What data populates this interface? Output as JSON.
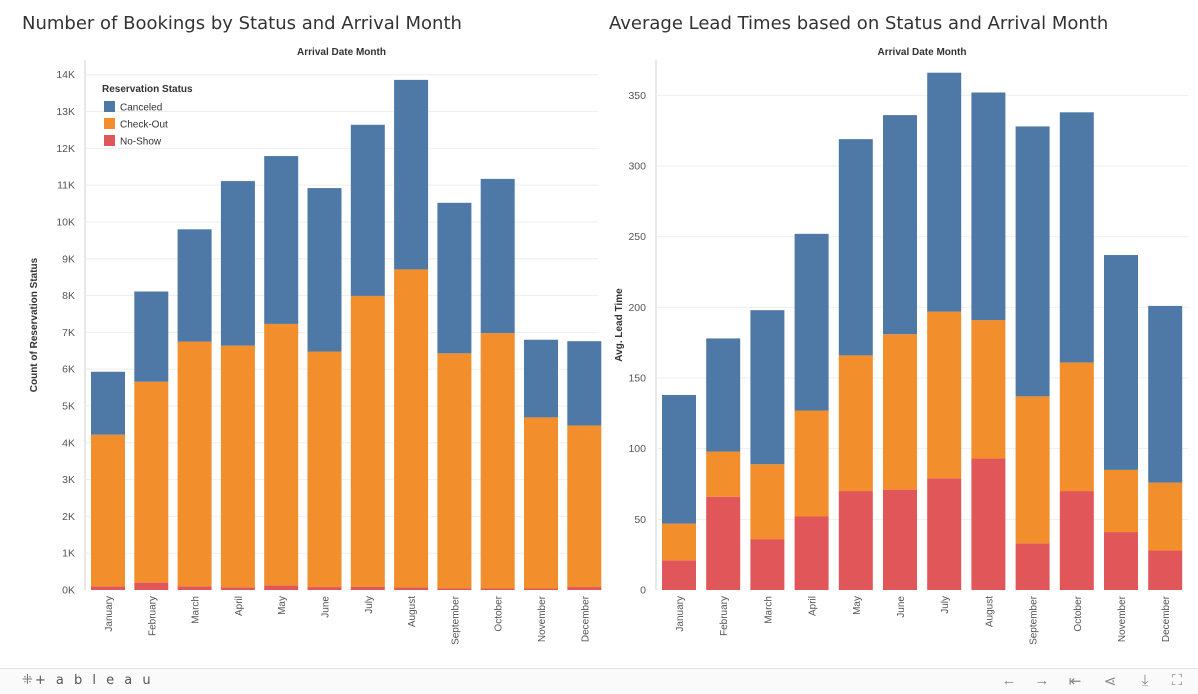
{
  "chart_data": [
    {
      "type": "bar",
      "stacked": true,
      "title": "Number of Bookings by Status and Arrival Month",
      "subtitle": "Arrival Date Month",
      "xlabel": "",
      "ylabel": "Count of Reservation Status",
      "ylim": [
        0,
        14400
      ],
      "yticks": [
        0,
        1000,
        2000,
        3000,
        4000,
        5000,
        6000,
        7000,
        8000,
        9000,
        10000,
        11000,
        12000,
        13000,
        14000
      ],
      "ytick_labels": [
        "0K",
        "1K",
        "2K",
        "3K",
        "4K",
        "5K",
        "6K",
        "7K",
        "8K",
        "9K",
        "10K",
        "11K",
        "12K",
        "13K",
        "14K"
      ],
      "categories": [
        "January",
        "February",
        "March",
        "April",
        "May",
        "June",
        "July",
        "August",
        "September",
        "October",
        "November",
        "December"
      ],
      "series": [
        {
          "name": "No-Show",
          "color": "#e15759",
          "values": [
            100,
            200,
            100,
            70,
            120,
            80,
            90,
            70,
            40,
            40,
            40,
            80
          ]
        },
        {
          "name": "Check-Out",
          "color": "#f28e2b",
          "values": [
            4120,
            5460,
            6650,
            6570,
            7110,
            6400,
            7900,
            8640,
            6390,
            6940,
            4650,
            4390
          ]
        },
        {
          "name": "Canceled",
          "color": "#4e79a7",
          "values": [
            1710,
            2450,
            3050,
            4470,
            4560,
            4440,
            4650,
            5150,
            4090,
            4190,
            2110,
            2290
          ]
        }
      ],
      "grid": true,
      "legend": {
        "title": "Reservation Status",
        "placement": "top-left",
        "entries": [
          "Canceled",
          "Check-Out",
          "No-Show"
        ]
      }
    },
    {
      "type": "bar",
      "stacked": true,
      "title": "Average Lead Times based on Status and Arrival Month",
      "subtitle": "Arrival Date Month",
      "xlabel": "",
      "ylabel": "Avg. Lead Time",
      "ylim": [
        0,
        375
      ],
      "yticks": [
        0,
        50,
        100,
        150,
        200,
        250,
        300,
        350
      ],
      "ytick_labels": [
        "0",
        "50",
        "100",
        "150",
        "200",
        "250",
        "300",
        "350"
      ],
      "categories": [
        "January",
        "February",
        "March",
        "April",
        "May",
        "June",
        "July",
        "August",
        "September",
        "October",
        "November",
        "December"
      ],
      "series": [
        {
          "name": "No-Show",
          "color": "#e15759",
          "values": [
            21,
            66,
            36,
            52,
            70,
            71,
            79,
            93,
            33,
            70,
            41,
            28
          ]
        },
        {
          "name": "Check-Out",
          "color": "#f28e2b",
          "values": [
            26,
            32,
            53,
            75,
            96,
            110,
            118,
            98,
            104,
            91,
            44,
            48
          ]
        },
        {
          "name": "Canceled",
          "color": "#4e79a7",
          "values": [
            91,
            80,
            109,
            125,
            153,
            155,
            169,
            161,
            191,
            177,
            152,
            125
          ]
        }
      ],
      "grid": true
    }
  ],
  "footer": {
    "logo_text": "+ a b l e a u",
    "icons": [
      "undo-icon",
      "redo-icon",
      "revert-icon",
      "share-icon",
      "download-icon",
      "fullscreen-icon"
    ]
  }
}
